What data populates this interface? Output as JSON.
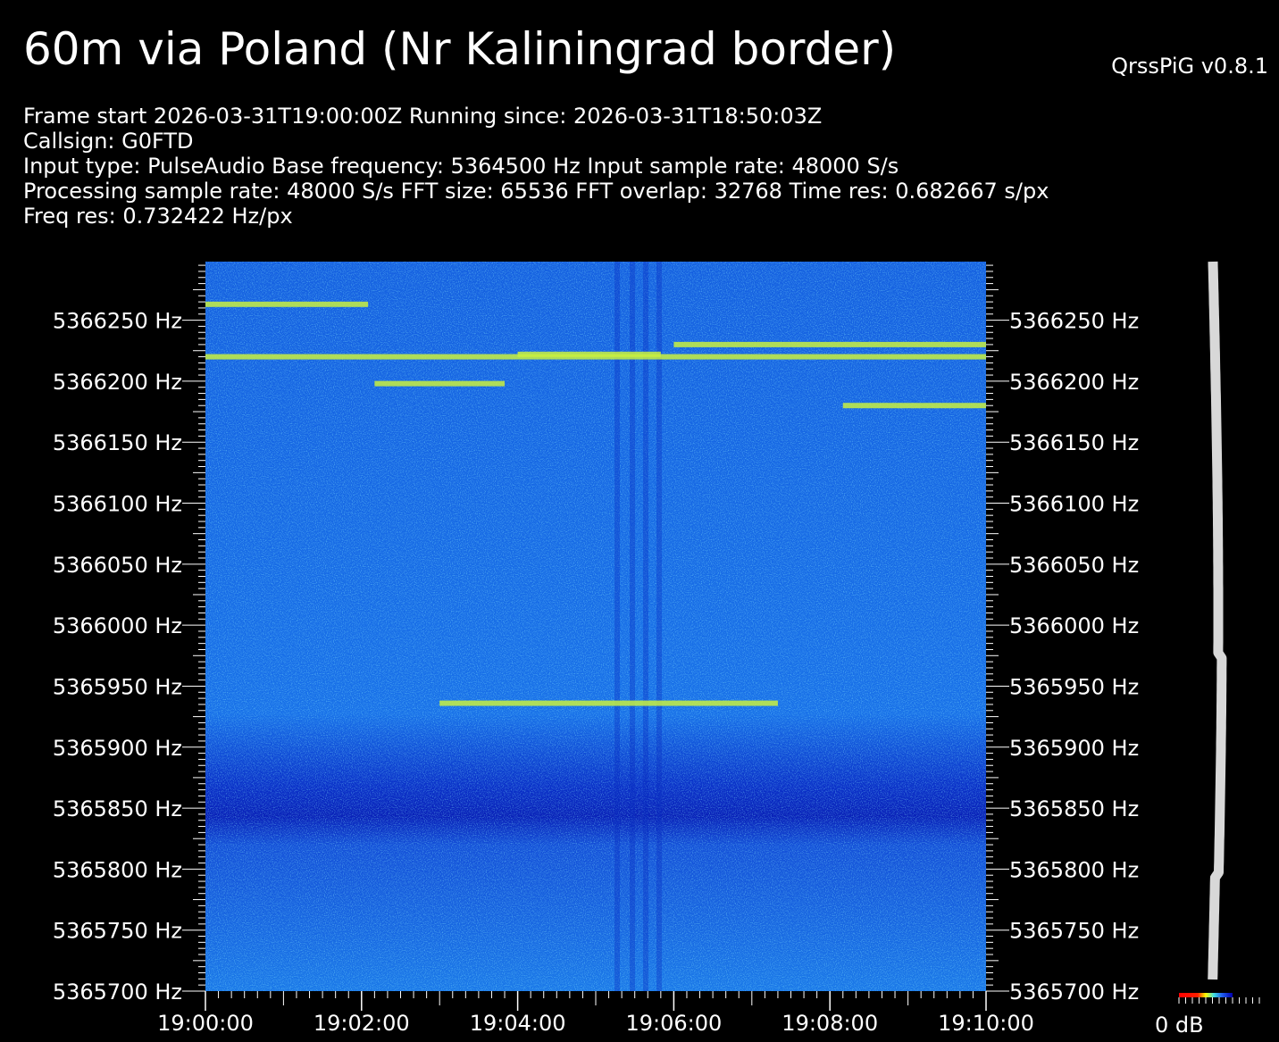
{
  "header": {
    "title": "60m via Poland (Nr Kaliningrad border)",
    "version": "QrssPiG v0.8.1"
  },
  "info_lines": [
    "Frame start 2026-03-31T19:00:00Z Running since: 2026-03-31T18:50:03Z",
    "Callsign: G0FTD",
    "Input type: PulseAudio Base frequency: 5364500 Hz Input sample rate: 48000 S/s",
    "Processing sample rate: 48000 S/s FFT size: 65536 FFT overlap: 32768 Time res: 0.682667 s/px",
    "Freq res: 0.732422 Hz/px"
  ],
  "chart_data": {
    "type": "heatmap",
    "title": "60m via Poland (Nr Kaliningrad border)",
    "x_ticks": [
      "19:00:00",
      "19:02:00",
      "19:04:00",
      "19:06:00",
      "19:08:00",
      "19:10:00"
    ],
    "x_range_seconds": [
      0,
      600
    ],
    "y_ticks": [
      5366250,
      5366200,
      5366150,
      5366100,
      5366050,
      5366000,
      5365950,
      5365900,
      5365850,
      5365800,
      5365750,
      5365700
    ],
    "y_unit": "Hz",
    "y_range": [
      5365700,
      5366298
    ],
    "signals": [
      {
        "start": "19:00:00",
        "end": "19:02:05",
        "freq": 5366263
      },
      {
        "start": "19:00:00",
        "end": "19:10:00",
        "freq": 5366220
      },
      {
        "start": "19:02:10",
        "end": "19:03:50",
        "freq": 5366198
      },
      {
        "start": "19:04:00",
        "end": "19:05:50",
        "freq": 5366222
      },
      {
        "start": "19:06:00",
        "end": "19:10:00",
        "freq": 5366230
      },
      {
        "start": "19:08:10",
        "end": "19:10:00",
        "freq": 5366180
      },
      {
        "start": "19:03:00",
        "end": "19:07:20",
        "freq": 5365936
      }
    ],
    "colormap": [
      "#0000a0",
      "#1040d8",
      "#2080f0",
      "#30b0f0",
      "#40d0e8",
      "#80f0c0",
      "#f0f020"
    ],
    "scale_label": "0 dB"
  }
}
